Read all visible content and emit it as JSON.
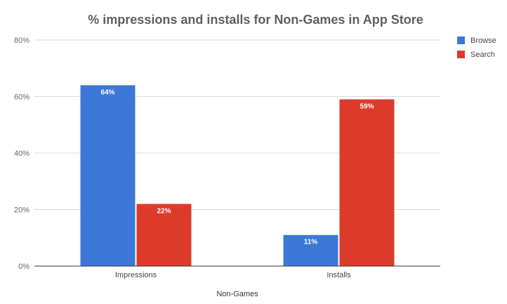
{
  "chart_data": {
    "type": "bar",
    "title": "% impressions and installs for Non-Games in App Store",
    "xlabel": "Non-Games",
    "ylabel": "",
    "categories": [
      "Impressions",
      "Installs"
    ],
    "series": [
      {
        "name": "Browse",
        "values": [
          64,
          11
        ],
        "labels": [
          "64%",
          "11%"
        ],
        "color": "#3c78d8"
      },
      {
        "name": "Search",
        "values": [
          22,
          59
        ],
        "labels": [
          "22%",
          "59%"
        ],
        "color": "#dc3b2c"
      }
    ],
    "ylim": [
      0,
      80
    ],
    "yticks": [
      {
        "value": 0,
        "label": "0%"
      },
      {
        "value": 20,
        "label": "20%"
      },
      {
        "value": 40,
        "label": "40%"
      },
      {
        "value": 60,
        "label": "60%"
      },
      {
        "value": 80,
        "label": "80%"
      }
    ],
    "grid": true,
    "legend_position": "top-right",
    "colors": {
      "grid": "#d9d9d9",
      "axis": "#333333"
    }
  }
}
